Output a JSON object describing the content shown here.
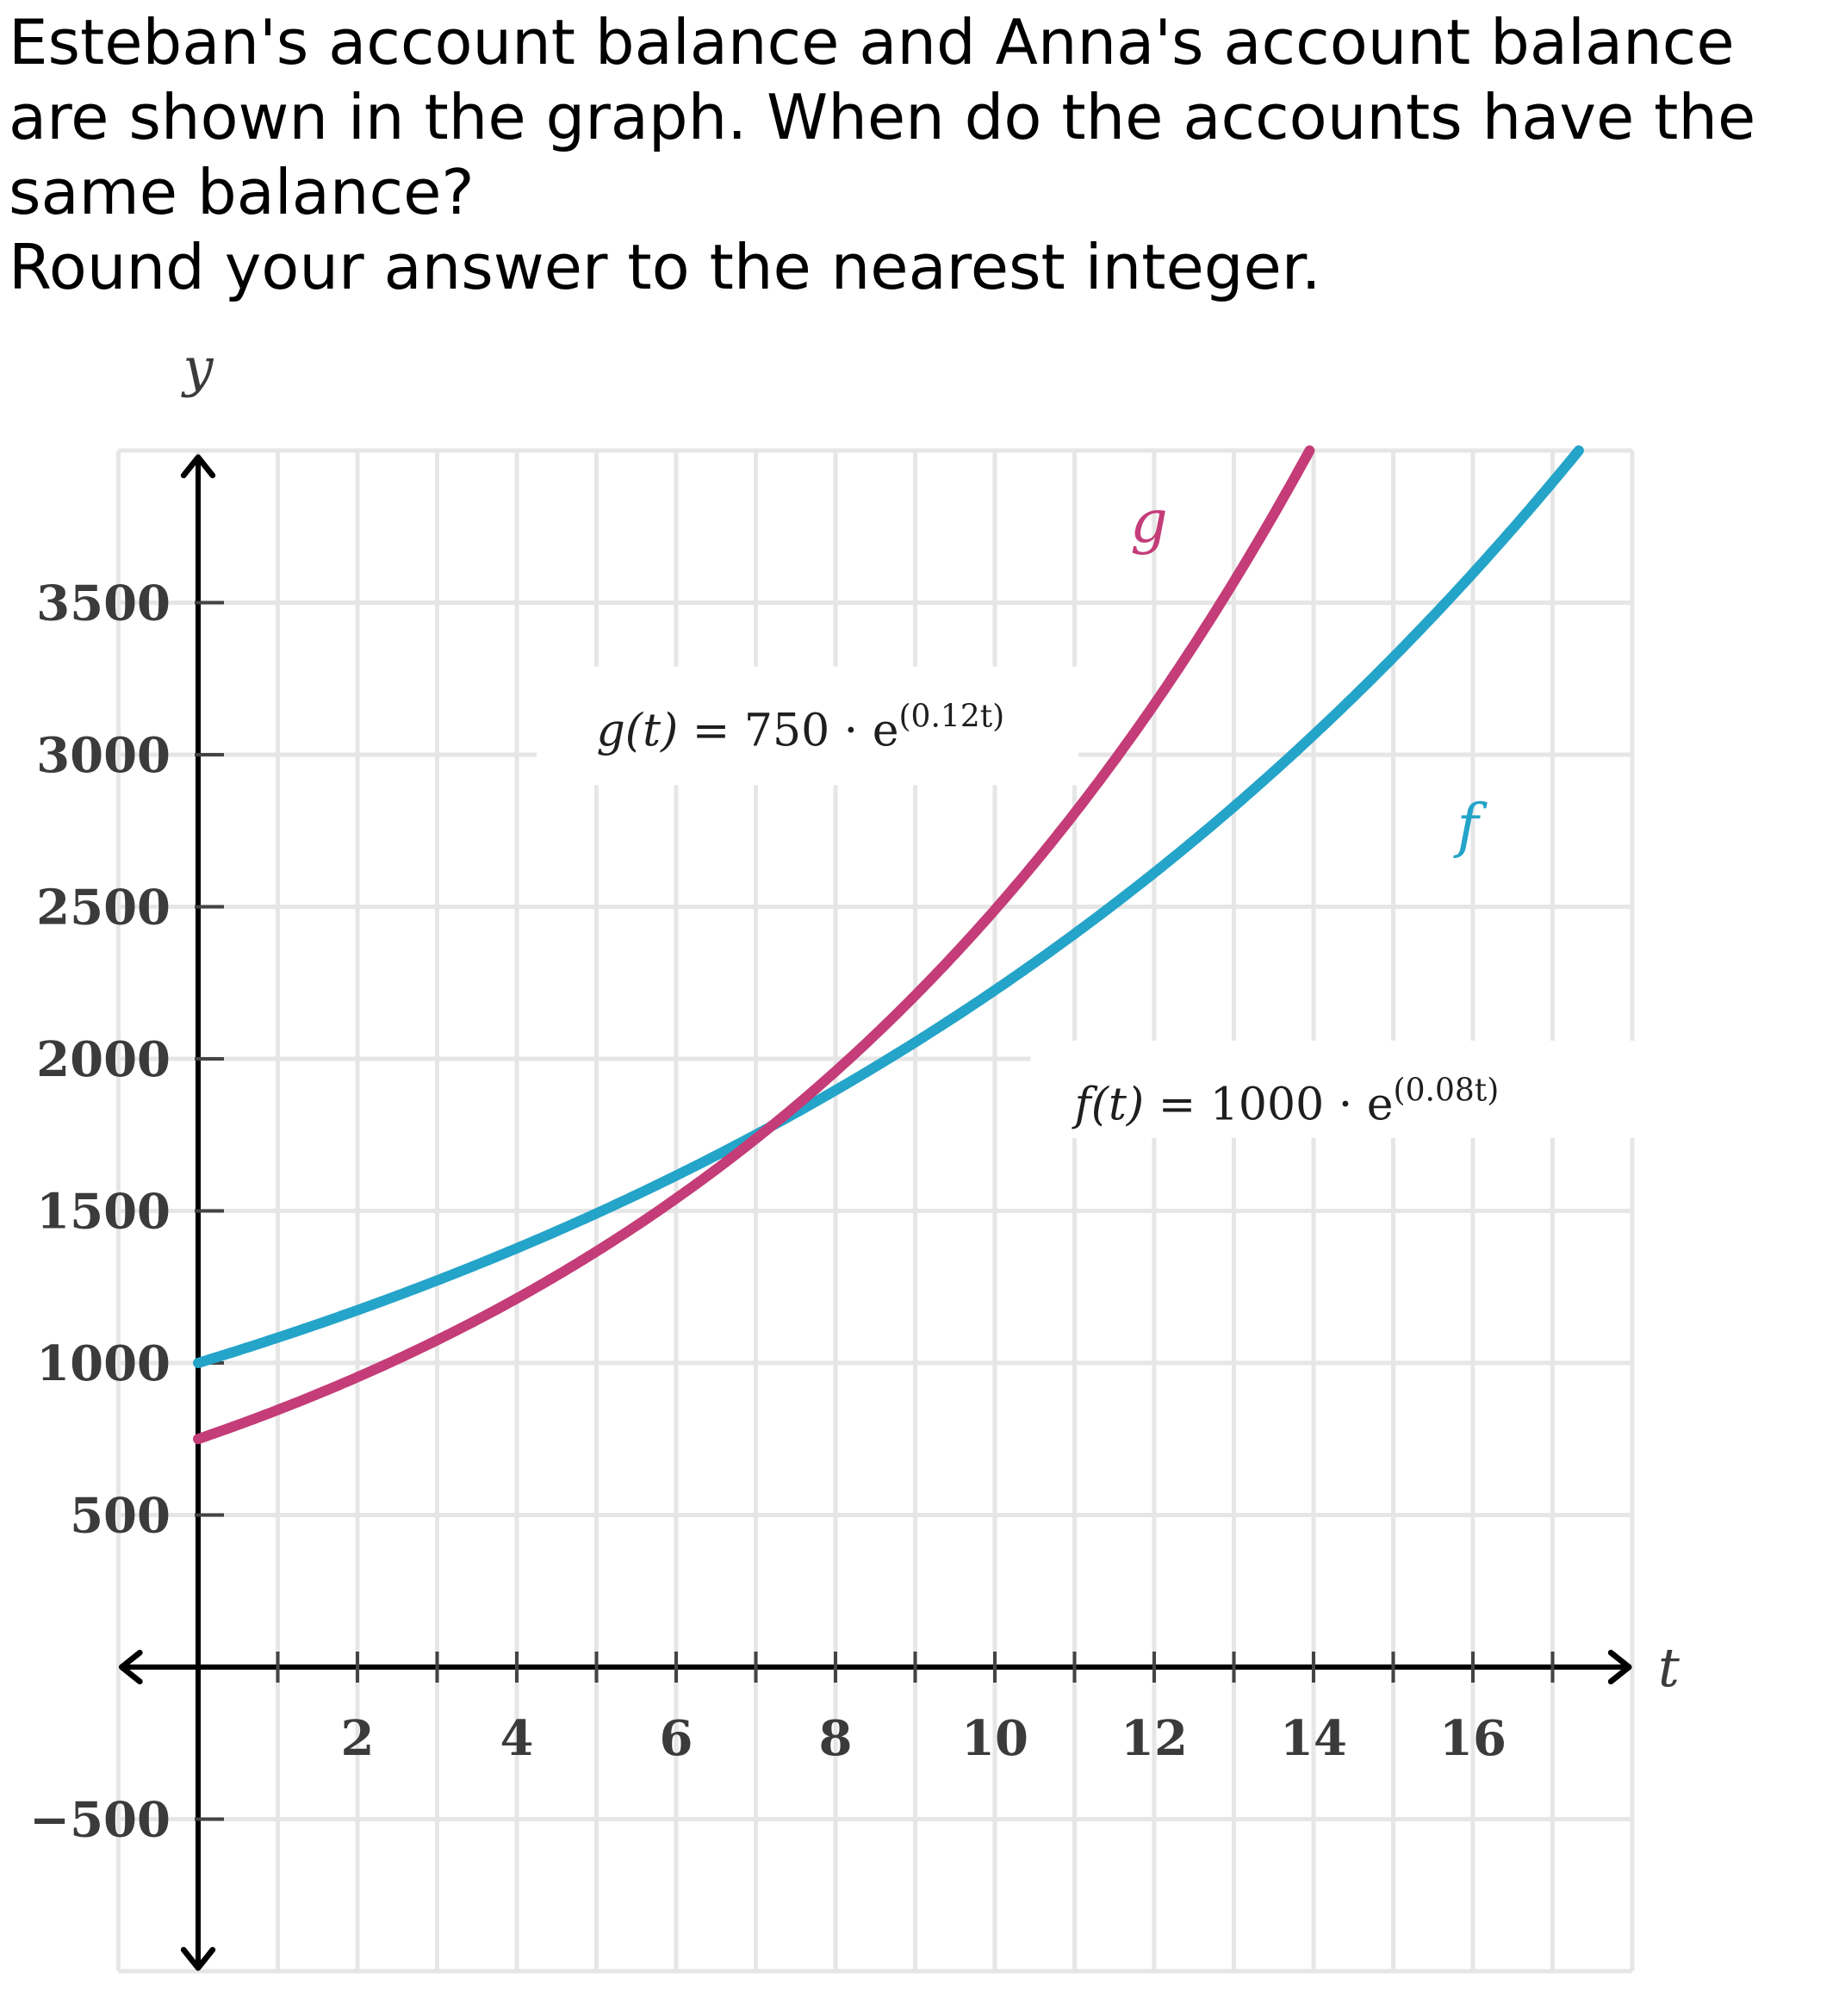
{
  "question": {
    "line1": "Esteban's account balance and Anna's account balance are shown in the graph. When do the accounts have the same balance?",
    "line2": "Round your answer to the nearest integer."
  },
  "chart_data": {
    "type": "line",
    "xlabel": "t",
    "ylabel": "y",
    "xlim": [
      -1,
      18
    ],
    "ylim": [
      -1000,
      4000
    ],
    "grid": true,
    "x_ticks": [
      2,
      4,
      6,
      8,
      10,
      12,
      14,
      16
    ],
    "y_ticks": [
      -500,
      500,
      1000,
      1500,
      2000,
      2500,
      3000,
      3500
    ],
    "x_tick_labels": [
      "2",
      "4",
      "6",
      "8",
      "10",
      "12",
      "14",
      "16"
    ],
    "y_tick_labels": [
      "−500",
      "500",
      "1000",
      "1500",
      "2000",
      "2500",
      "3000",
      "3500"
    ],
    "series": [
      {
        "name": "f",
        "formula_lhs": "f(t)",
        "formula_eq": "=",
        "formula_base": "1000 · e",
        "formula_exp": "(0.08t)",
        "initial": 1000,
        "rate": 0.08,
        "color": "#24a4c8",
        "x": [
          0,
          2,
          4,
          6,
          8,
          10,
          12,
          14,
          16,
          17.7
        ],
        "values": [
          1000,
          1174,
          1377,
          1616,
          1896,
          2226,
          2612,
          3065,
          3597,
          4124
        ]
      },
      {
        "name": "g",
        "formula_lhs": "g(t)",
        "formula_eq": "=",
        "formula_base": "750 · e",
        "formula_exp": "(0.12t)",
        "initial": 750,
        "rate": 0.12,
        "color": "#c43c78",
        "x": [
          0,
          2,
          4,
          6,
          8,
          10,
          12,
          14
        ],
        "values": [
          750,
          953,
          1212,
          1540,
          1959,
          2490,
          3166,
          4025
        ]
      }
    ]
  }
}
